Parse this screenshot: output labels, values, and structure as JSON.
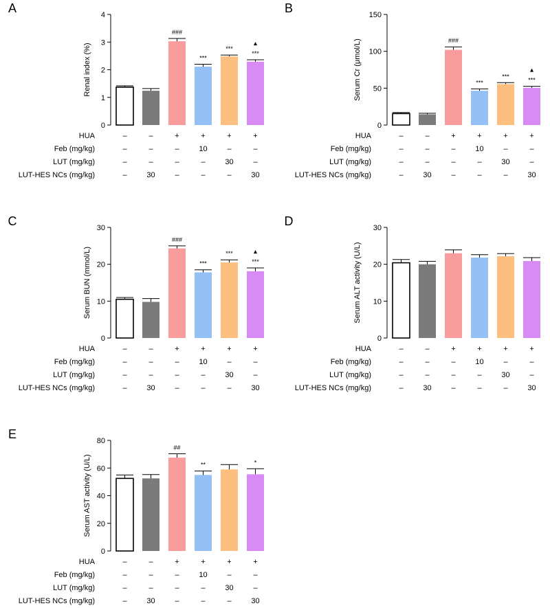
{
  "figure": {
    "row_labels": [
      "HUA",
      "Feb (mg/kg)",
      "LUT (mg/kg)",
      "LUT-HES NCs (mg/kg)"
    ],
    "table": [
      [
        "–",
        "–",
        "+",
        "+",
        "+",
        "+"
      ],
      [
        "–",
        "–",
        "–",
        "10",
        "–",
        "–"
      ],
      [
        "–",
        "–",
        "–",
        "–",
        "30",
        "–"
      ],
      [
        "–",
        "30",
        "–",
        "–",
        "–",
        "30"
      ]
    ],
    "group_colors": [
      "#ffffff",
      "#7b7b7b",
      "#f99c9c",
      "#94c0f6",
      "#fdbf7f",
      "#d88bf5"
    ]
  },
  "chart_data": [
    {
      "type": "bar",
      "panel": "A",
      "title": "",
      "xlabel": "",
      "ylabel": "Renal index (%)",
      "ylim": [
        0,
        4
      ],
      "yticks": [
        "0",
        "1",
        "2",
        "3",
        "4"
      ],
      "values": [
        1.37,
        1.24,
        3.03,
        2.11,
        2.48,
        2.29
      ],
      "errors": [
        0.05,
        0.08,
        0.1,
        0.09,
        0.05,
        0.07
      ],
      "significance": [
        "",
        "",
        "###",
        "***",
        "***",
        "***"
      ],
      "triangle": [
        false,
        false,
        false,
        false,
        false,
        true
      ]
    },
    {
      "type": "bar",
      "panel": "B",
      "title": "",
      "xlabel": "",
      "ylabel": "Serum Cr (μmol/L)",
      "ylim": [
        0,
        150
      ],
      "yticks": [
        "0",
        "50",
        "100",
        "150"
      ],
      "values": [
        15.5,
        14.5,
        102,
        46.5,
        55.5,
        50.5
      ],
      "errors": [
        1.5,
        1.5,
        4,
        2.5,
        2,
        2
      ],
      "significance": [
        "",
        "",
        "###",
        "***",
        "***",
        "***"
      ],
      "triangle": [
        false,
        false,
        false,
        false,
        false,
        true
      ]
    },
    {
      "type": "bar",
      "panel": "C",
      "title": "",
      "xlabel": "",
      "ylabel": "Serum BUN (mmol/L)",
      "ylim": [
        0,
        30
      ],
      "yticks": [
        "0",
        "10",
        "20",
        "30"
      ],
      "values": [
        10.5,
        9.8,
        24.3,
        17.8,
        20.5,
        18.1
      ],
      "errors": [
        0.5,
        0.9,
        0.7,
        0.7,
        0.7,
        0.9
      ],
      "significance": [
        "",
        "",
        "###",
        "***",
        "***",
        "***"
      ],
      "triangle": [
        false,
        false,
        false,
        false,
        false,
        true
      ]
    },
    {
      "type": "bar",
      "panel": "D",
      "title": "",
      "xlabel": "",
      "ylabel": "Serum ALT activity (U/L)",
      "ylim": [
        0,
        30
      ],
      "yticks": [
        "0",
        "10",
        "20",
        "30"
      ],
      "values": [
        20.4,
        20.0,
        23.0,
        21.8,
        22.2,
        20.9
      ],
      "errors": [
        0.9,
        0.8,
        0.9,
        0.8,
        0.7,
        0.9
      ],
      "significance": [
        "",
        "",
        "",
        "",
        "",
        ""
      ],
      "triangle": [
        false,
        false,
        false,
        false,
        false,
        false
      ]
    },
    {
      "type": "bar",
      "panel": "E",
      "title": "",
      "xlabel": "",
      "ylabel": "Serum AST activity (U/L)",
      "ylim": [
        0,
        80
      ],
      "yticks": [
        "0",
        "20",
        "40",
        "60",
        "80"
      ],
      "values": [
        52.5,
        52.5,
        67.5,
        55.0,
        59.0,
        55.5
      ],
      "errors": [
        2.5,
        2.8,
        2.8,
        2.8,
        3.5,
        4.0
      ],
      "significance": [
        "",
        "",
        "##",
        "**",
        "",
        "*"
      ],
      "triangle": [
        false,
        false,
        false,
        false,
        false,
        false
      ]
    }
  ]
}
